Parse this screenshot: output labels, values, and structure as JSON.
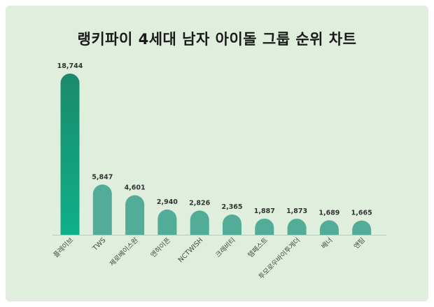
{
  "title": "랭키파이 4세대 남자 아이돌 그룹 순위 차트",
  "chart_data": {
    "type": "bar",
    "title": "랭키파이 4세대 남자 아이돌 그룹 순위 차트",
    "categories": [
      "플레이브",
      "TWS",
      "제로베이스원",
      "엔하이픈",
      "NCTWISH",
      "크래비티",
      "템페스트",
      "투모로우바이투게더",
      "배너",
      "앤팀"
    ],
    "values": [
      18744,
      5847,
      4601,
      2940,
      2826,
      2365,
      1887,
      1873,
      1689,
      1665
    ],
    "value_labels": [
      "18,744",
      "5,847",
      "4,601",
      "2,940",
      "2,826",
      "2,365",
      "1,887",
      "1,873",
      "1,689",
      "1,665"
    ],
    "xlabel": "",
    "ylabel": "",
    "ylim": [
      0,
      18744
    ],
    "grid": false,
    "legend": "none",
    "colors": {
      "first_bar_top": "#1b8a6b",
      "first_bar_bottom": "#0fb089",
      "bar": "#52ad98",
      "baseline": "#b9c8b8",
      "label": "#333333",
      "background": "#dfeedd"
    }
  }
}
